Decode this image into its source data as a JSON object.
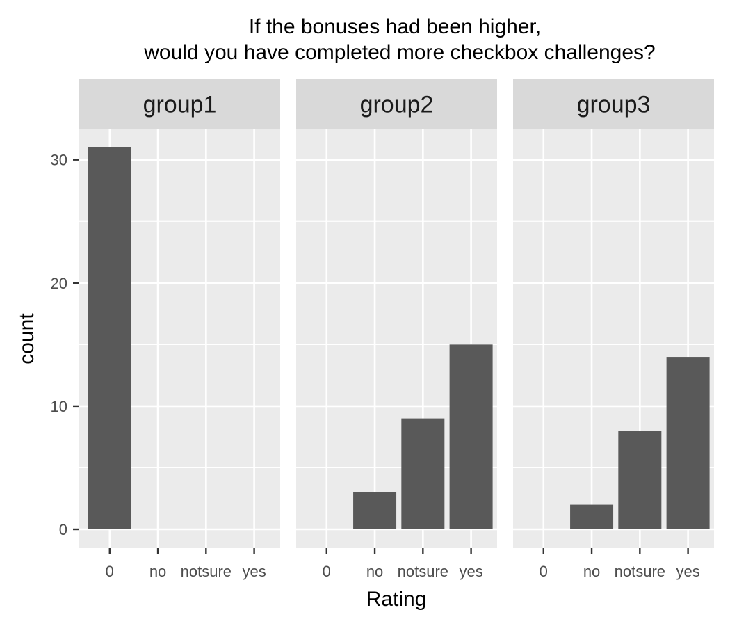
{
  "chart_data": {
    "type": "bar",
    "title": [
      "If the bonuses had been higher,",
      "would you have completed more checkbox challenges?"
    ],
    "xlabel": "Rating",
    "ylabel": "count",
    "categories": [
      "0",
      "no",
      "notsure",
      "yes"
    ],
    "ylim": [
      0,
      34
    ],
    "yticks": [
      0,
      10,
      20,
      30
    ],
    "grid": true,
    "facets": [
      {
        "name": "group1",
        "values": [
          31,
          0,
          0,
          0
        ]
      },
      {
        "name": "group2",
        "values": [
          0,
          3,
          9,
          15
        ]
      },
      {
        "name": "group3",
        "values": [
          0,
          2,
          8,
          14
        ]
      }
    ],
    "colors": {
      "bar": "#595959",
      "panel": "#ebebeb",
      "strip": "#d9d9d9",
      "grid": "#ffffff",
      "tick": "#333333"
    }
  }
}
